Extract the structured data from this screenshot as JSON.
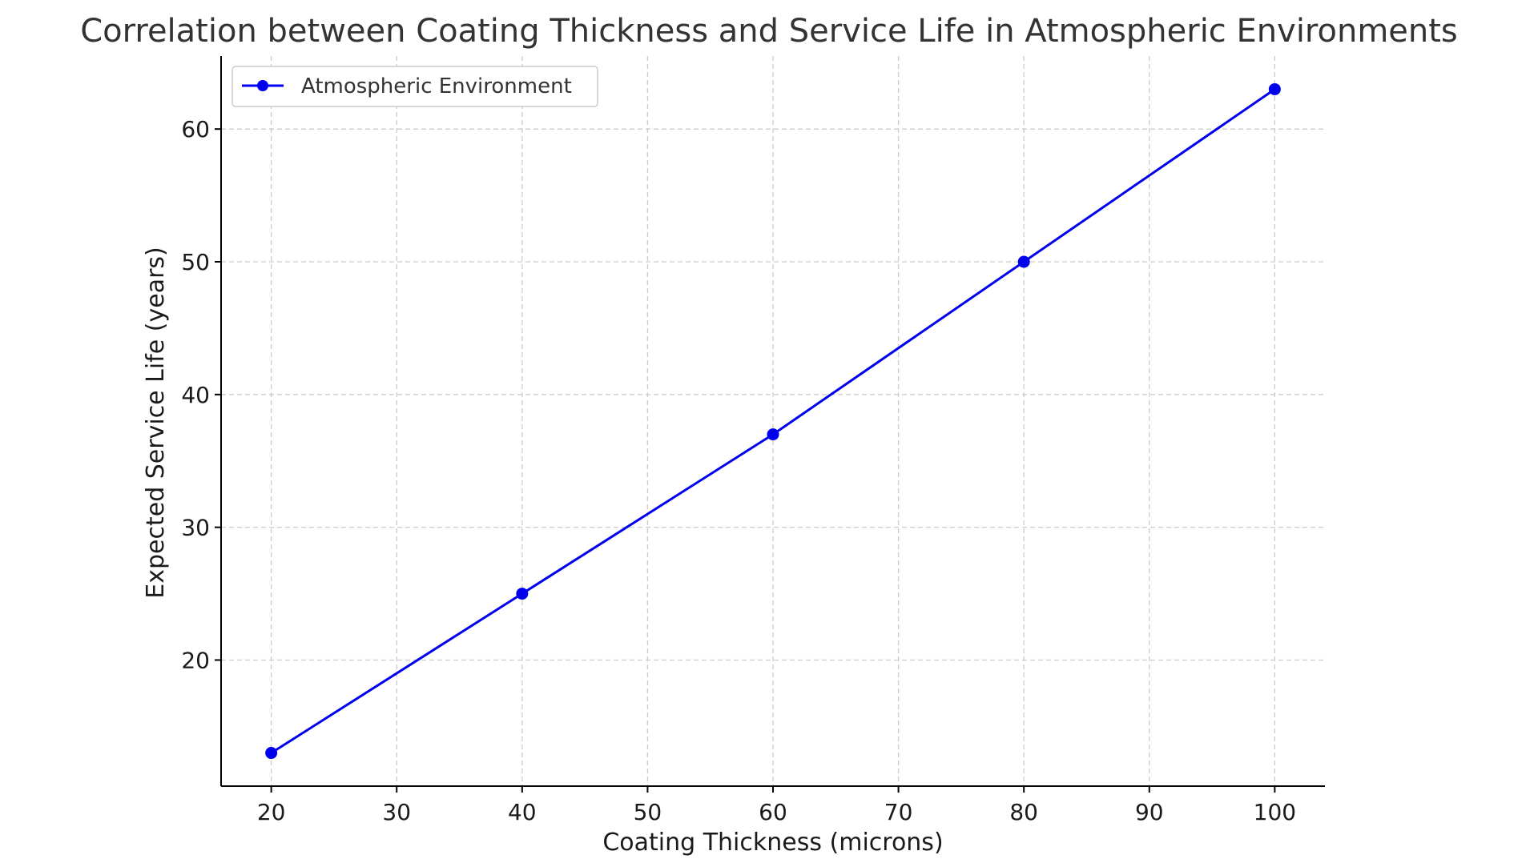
{
  "chart_data": {
    "type": "line",
    "title": "Correlation between Coating Thickness and Service Life in Atmospheric Environments",
    "xlabel": "Coating Thickness (microns)",
    "ylabel": "Expected Service Life (years)",
    "x": [
      20,
      40,
      60,
      80,
      100
    ],
    "series": [
      {
        "name": "Atmospheric Environment",
        "values": [
          13,
          25,
          37,
          50,
          63
        ],
        "color": "#0000ee",
        "marker": "circle"
      }
    ],
    "xlim": [
      16,
      104
    ],
    "ylim": [
      10.5,
      65.5
    ],
    "xticks": [
      20,
      30,
      40,
      50,
      60,
      70,
      80,
      90,
      100
    ],
    "yticks": [
      20,
      30,
      40,
      50,
      60
    ],
    "grid": true,
    "legend_position": "top-left"
  }
}
